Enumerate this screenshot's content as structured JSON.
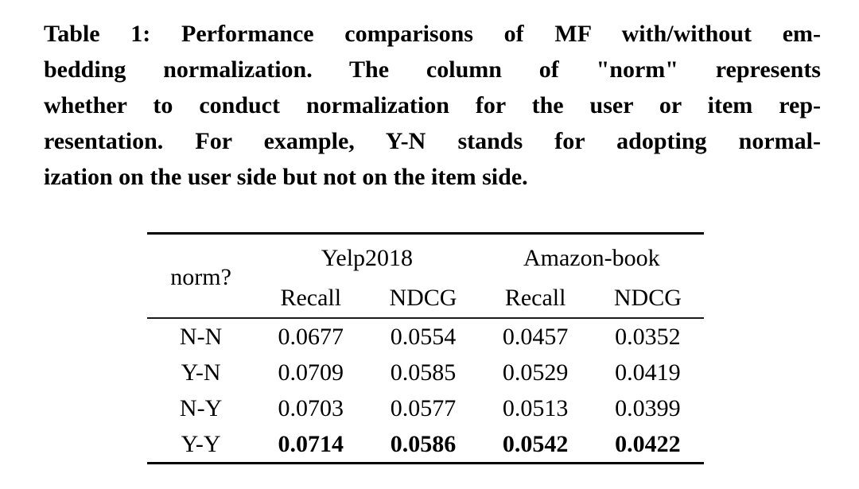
{
  "caption": {
    "label": "Table 1",
    "lines": [
      "Table 1: Performance comparisons of MF with/without em-",
      "bedding normalization. The column of \"norm\" represents",
      "whether to conduct normalization for the user or item rep-",
      "resentation. For example, Y-N stands for adopting normal-",
      "ization on the user side but not on the item side."
    ]
  },
  "table": {
    "corner_header": "norm?",
    "group_headers": [
      "Yelp2018",
      "Amazon-book"
    ],
    "sub_headers": [
      "Recall",
      "NDCG",
      "Recall",
      "NDCG"
    ],
    "rows": [
      {
        "label": "N-N",
        "values": [
          "0.0677",
          "0.0554",
          "0.0457",
          "0.0352"
        ]
      },
      {
        "label": "Y-N",
        "values": [
          "0.0709",
          "0.0585",
          "0.0529",
          "0.0419"
        ]
      },
      {
        "label": "N-Y",
        "values": [
          "0.0703",
          "0.0577",
          "0.0513",
          "0.0399"
        ]
      },
      {
        "label": "Y-Y",
        "values": [
          "0.0714",
          "0.0586",
          "0.0542",
          "0.0422"
        ]
      }
    ],
    "best_row_label": "Y-Y"
  },
  "chart_data": {
    "type": "table",
    "title": "Table 1: Performance comparisons of MF with/without embedding normalization",
    "columns": [
      "norm?",
      "Yelp2018 Recall",
      "Yelp2018 NDCG",
      "Amazon-book Recall",
      "Amazon-book NDCG"
    ],
    "rows": [
      [
        "N-N",
        0.0677,
        0.0554,
        0.0457,
        0.0352
      ],
      [
        "Y-N",
        0.0709,
        0.0585,
        0.0529,
        0.0419
      ],
      [
        "N-Y",
        0.0703,
        0.0577,
        0.0513,
        0.0399
      ],
      [
        "Y-Y",
        0.0714,
        0.0586,
        0.0542,
        0.0422
      ]
    ],
    "bold_best_row": "Y-Y"
  },
  "colors": {
    "text": "#000000",
    "background": "#ffffff",
    "rule": "#000000"
  }
}
